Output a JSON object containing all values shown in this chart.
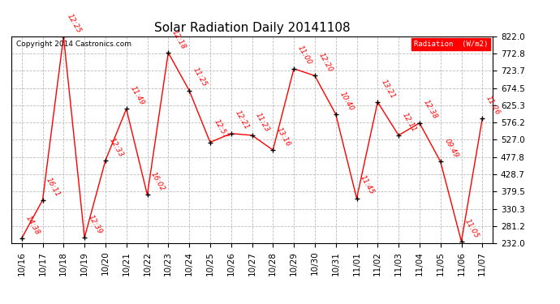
{
  "title": "Solar Radiation Daily 20141108",
  "copyright": "Copyright 2014 Castronics.com",
  "legend_label": "Radiation  (W/m2)",
  "x_labels": [
    "10/16",
    "10/17",
    "10/18",
    "10/19",
    "10/20",
    "10/21",
    "10/22",
    "10/23",
    "10/24",
    "10/25",
    "10/26",
    "10/27",
    "10/28",
    "10/29",
    "10/30",
    "10/31",
    "11/01",
    "11/02",
    "11/03",
    "11/04",
    "11/05",
    "11/06",
    "11/07"
  ],
  "y_values": [
    246,
    355,
    822,
    248,
    468,
    615,
    370,
    776,
    668,
    520,
    545,
    540,
    498,
    730,
    710,
    600,
    360,
    635,
    540,
    575,
    465,
    237,
    588
  ],
  "point_labels": [
    "14:38",
    "16:11",
    "12:25",
    "12:39",
    "12:33",
    "11:49",
    "16:02",
    "12:18",
    "11:25",
    "12:57",
    "12:21",
    "11:23",
    "13:16",
    "11:00",
    "12:20",
    "10:40",
    "11:45",
    "13:21",
    "12:11",
    "12:38",
    "09:49",
    "11:05",
    "11:26"
  ],
  "y_min": 232.0,
  "y_max": 822.0,
  "y_ticks": [
    232.0,
    281.2,
    330.3,
    379.5,
    428.7,
    477.8,
    527.0,
    576.2,
    625.3,
    674.5,
    723.7,
    772.8,
    822.0
  ],
  "line_color": "red",
  "marker_color": "black",
  "label_color": "red",
  "bg_color": "white",
  "grid_color": "#bbbbbb",
  "title_fontsize": 11,
  "label_fontsize": 6.5,
  "tick_fontsize": 7.5,
  "copyright_fontsize": 6.5
}
